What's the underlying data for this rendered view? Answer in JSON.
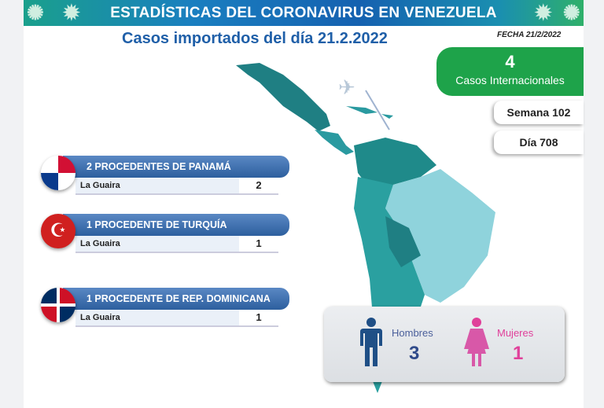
{
  "header": {
    "title": "ESTADÍSTICAS DEL CORONAVIRUS EN VENEZUELA",
    "subtitle": "Casos importados del día 21.2.2022",
    "fecha": "FECHA 21/2/2022"
  },
  "summary": {
    "count": "4",
    "label": "Casos Internacionales",
    "semana": "Semana 102",
    "dia": "Día 708"
  },
  "origins": [
    {
      "title": "2 PROCEDENTES DE PANAMÁ",
      "state": "La Guaira",
      "value": "2",
      "flag": "panama"
    },
    {
      "title": "1 PROCEDENTE DE TURQUÍA",
      "state": "La Guaira",
      "value": "1",
      "flag": "turkey"
    },
    {
      "title": "1 PROCEDENTE DE REP. DOMINICANA",
      "state": "La Guaira",
      "value": "1",
      "flag": "dominican-republic"
    }
  ],
  "gender": {
    "men_label": "Hombres",
    "men": "3",
    "women_label": "Mujeres",
    "women": "1",
    "men_color": "#1f4f86",
    "women_color": "#e0409a"
  },
  "colors": {
    "accent_green": "#1ea34a",
    "title_blue": "#1f5fa8",
    "map_dark": "#1f8a8a",
    "map_light": "#8fd3dc"
  }
}
